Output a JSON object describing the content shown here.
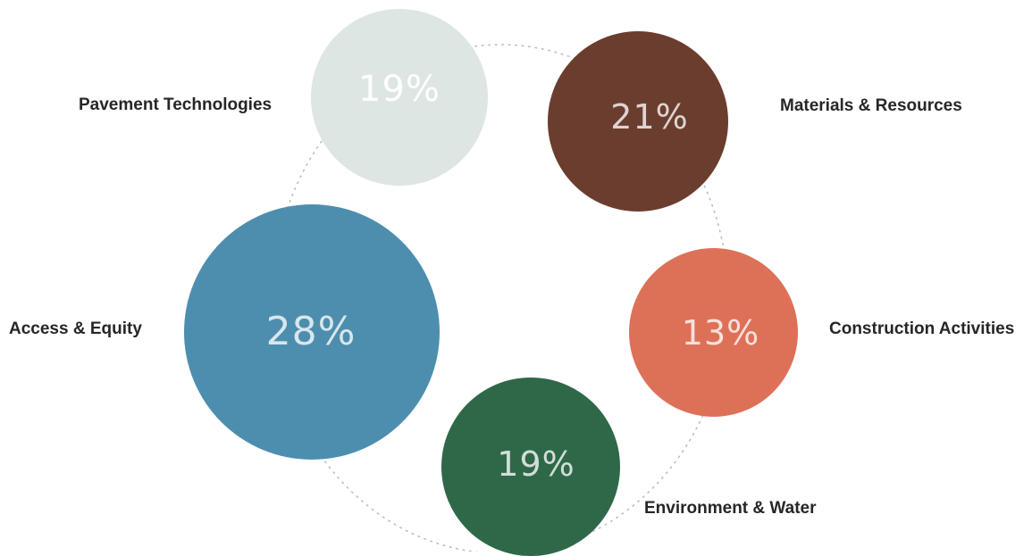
{
  "segments": [
    {
      "id": "pavement-technologies",
      "label": "Pavement Technologies",
      "value": "19%",
      "color": "#dde6e3"
    },
    {
      "id": "materials-resources",
      "label": "Materials & Resources",
      "value": "21%",
      "color": "#6b3d2e"
    },
    {
      "id": "construction-activities",
      "label": "Construction Activities",
      "value": "13%",
      "color": "#dd7158"
    },
    {
      "id": "environment-water",
      "label": "Environment & Water",
      "value": "19%",
      "color": "#2f6849"
    },
    {
      "id": "access-equity",
      "label": "Access & Equity",
      "value": "28%",
      "color": "#4d8eae"
    }
  ],
  "orbit_color": "#bdbdbd"
}
